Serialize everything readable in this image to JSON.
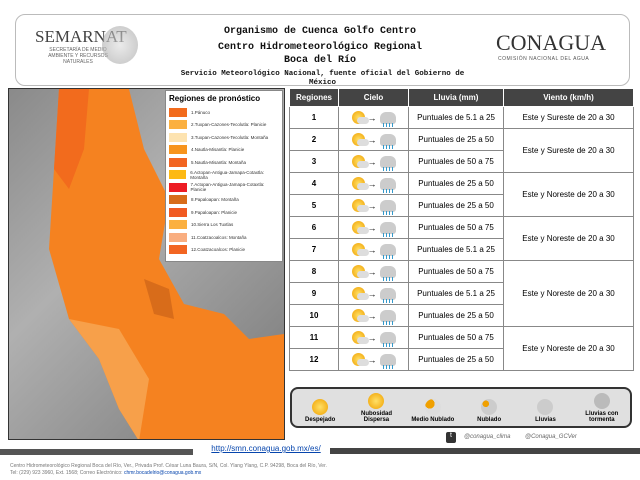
{
  "header": {
    "org": "Organismo de Cuenca Golfo Centro",
    "center": "Centro Hidrometeorológico Regional",
    "place": "Boca del Río",
    "smn": "Servicio Meteorológico Nacional, fuente oficial del Gobierno de México",
    "semarnat": "SEMARNAT",
    "semarnat_sub": "SECRETARÍA DE MEDIO AMBIENTE Y RECURSOS NATURALES",
    "conagua": "CONAGUA",
    "conagua_sub": "COMISIÓN NACIONAL DEL AGUA"
  },
  "map_legend": {
    "title": "Regiones de pronóstico",
    "items": [
      {
        "label": "1.Pánuco",
        "color": "#f26b1d"
      },
      {
        "label": "2.Tuxpan-Cazones-Tecolutla: Planicie",
        "color": "#fbb040"
      },
      {
        "label": "3.Tuxpan-Cazones-Tecolutla: Montaña",
        "color": "#fde3b0"
      },
      {
        "label": "4.Nautla-Misantla: Planicie",
        "color": "#f7941d"
      },
      {
        "label": "5.Nautla-Misantla: Montaña",
        "color": "#f26522"
      },
      {
        "label": "6.Actopan-Antigua-Jamapa-Cotaxtla: Montaña",
        "color": "#fdb913"
      },
      {
        "label": "7.Actopan-Antigua-Jamapa-Cotaxtla: Planicie",
        "color": "#ed1c24"
      },
      {
        "label": "8.Papaloapan: Montaña",
        "color": "#d86c1a"
      },
      {
        "label": "9.Papaloapan: Planicie",
        "color": "#f15a22"
      },
      {
        "label": "10.Sierra Los Tuxtlas",
        "color": "#fbb040"
      },
      {
        "label": "11.Coatzacoalcos: Montaña",
        "color": "#f9ae80"
      },
      {
        "label": "12.Coatzacoalcos: Planicie",
        "color": "#f26522"
      }
    ]
  },
  "table": {
    "headers": [
      "Regiones",
      "Cielo",
      "Lluvia (mm)",
      "Viento (km/h)"
    ],
    "rows": [
      {
        "region": "1",
        "rain": "Puntuales de 5.1 a 25",
        "wind": "Este y Sureste de 20 a 30",
        "span": 1
      },
      {
        "region": "2",
        "rain": "Puntuales de 25 a 50",
        "wind": "Este y Sureste de 20 a 30",
        "span": 2
      },
      {
        "region": "3",
        "rain": "Puntuales de 50 a 75"
      },
      {
        "region": "4",
        "rain": "Puntuales de 25 a 50",
        "wind": "Este y Noreste de 20 a 30",
        "span": 2
      },
      {
        "region": "5",
        "rain": "Puntuales de 25 a 50"
      },
      {
        "region": "6",
        "rain": "Puntuales de 50 a 75",
        "wind": "Este y Noreste de 20 a 30",
        "span": 2
      },
      {
        "region": "7",
        "rain": "Puntuales de 5.1 a 25"
      },
      {
        "region": "8",
        "rain": "Puntuales de 50 a 75",
        "wind": "Este y Noreste de 20 a 30",
        "span": 3
      },
      {
        "region": "9",
        "rain": "Puntuales de 5.1 a 25"
      },
      {
        "region": "10",
        "rain": "Puntuales de 25 a 50"
      },
      {
        "region": "11",
        "rain": "Puntuales de 50 a 75",
        "wind": "Este y Noreste de 20 a 30",
        "span": 2
      },
      {
        "region": "12",
        "rain": "Puntuales de 25 a 50"
      }
    ]
  },
  "sky_legend": [
    "Despejado",
    "Nubosidad Dispersa",
    "Medio Nublado",
    "Nublado",
    "Lluvias",
    "Lluvias con tormenta"
  ],
  "social": {
    "handle1": "@conagua_clima",
    "handle2": "@Conagua_GCVer"
  },
  "url": "http://smn.conagua.gob.mx/es/",
  "footer": {
    "line1": "Centro Hidrometeorológico Regional Boca del Río, Ver., Privada Prof. César Luna Baura, S/N, Col. Ylang Ylang, C.P. 94298, Boca del Río, Ver.",
    "line2": "Tel: (229) 923 3960, Ext. 1568; Correo Electrónico:",
    "email": "chmr.bocadelrio@conagua.gob.mx"
  }
}
